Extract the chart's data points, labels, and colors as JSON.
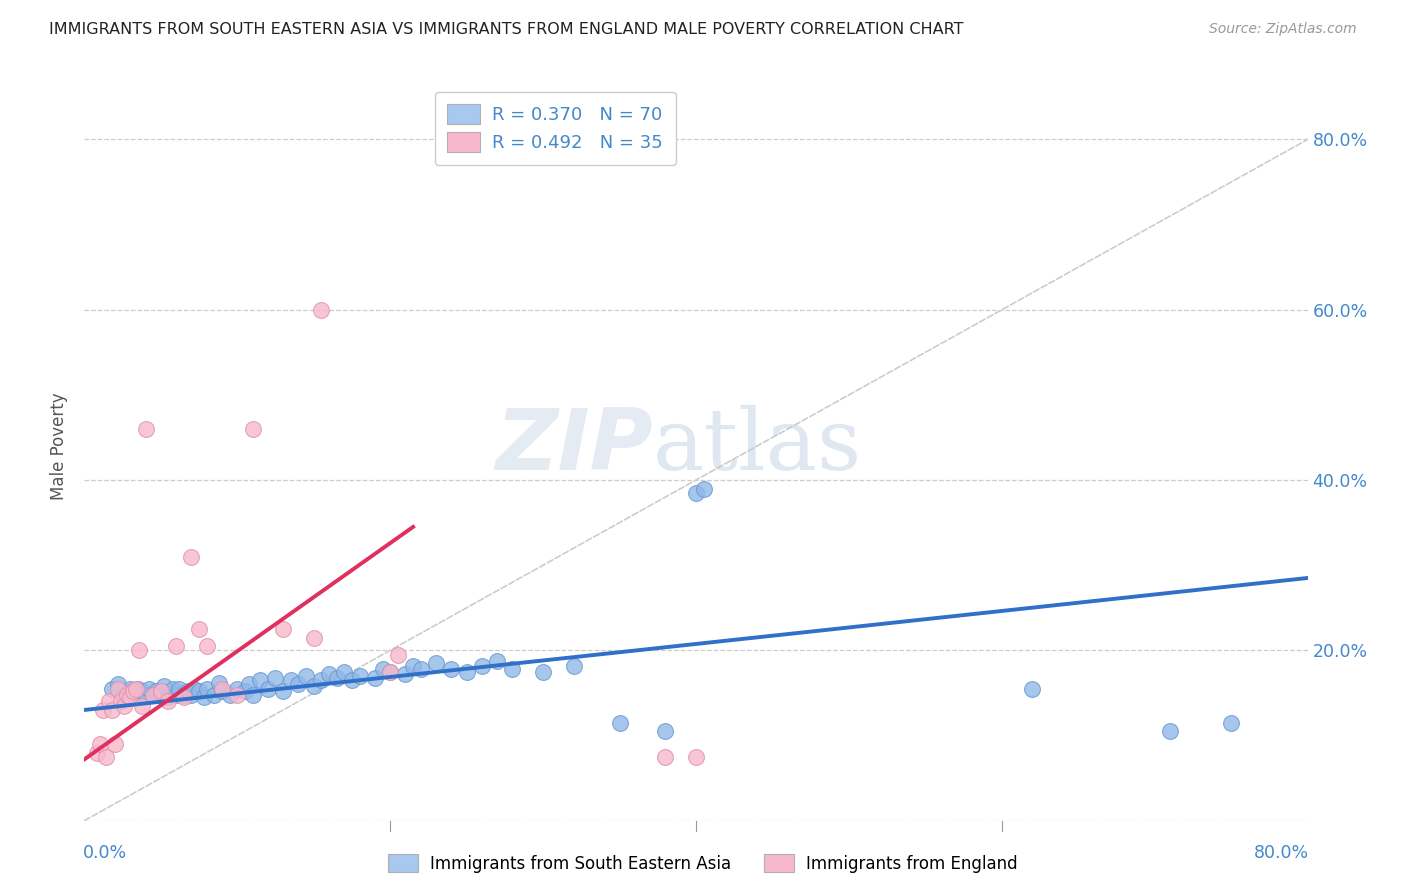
{
  "title": "IMMIGRANTS FROM SOUTH EASTERN ASIA VS IMMIGRANTS FROM ENGLAND MALE POVERTY CORRELATION CHART",
  "source": "Source: ZipAtlas.com",
  "ylabel": "Male Poverty",
  "xlim": [
    0.0,
    0.8
  ],
  "ylim": [
    0.0,
    0.88
  ],
  "ytick_values": [
    0.0,
    0.2,
    0.4,
    0.6,
    0.8
  ],
  "ytick_labels_right": [
    "",
    "20.0%",
    "40.0%",
    "60.0%",
    "80.0%"
  ],
  "xtick_values": [
    0.0,
    0.2,
    0.4,
    0.6,
    0.8
  ],
  "legend1_label": "R = 0.370   N = 70",
  "legend2_label": "R = 0.492   N = 35",
  "legend1_color": "#a8c8f0",
  "legend2_color": "#f8b8cc",
  "line1_color": "#3070c8",
  "line2_color": "#e03060",
  "scatter1_color": "#90b8e8",
  "scatter2_color": "#f8b8cc",
  "watermark_zip": "ZIP",
  "watermark_atlas": "atlas",
  "background_color": "#ffffff",
  "grid_color": "#cccccc",
  "title_color": "#222222",
  "axis_label_color": "#4488cc",
  "diag_line_color": "#cccccc",
  "blue_scatter_x": [
    0.018,
    0.022,
    0.025,
    0.028,
    0.03,
    0.032,
    0.033,
    0.035,
    0.036,
    0.038,
    0.04,
    0.042,
    0.045,
    0.047,
    0.05,
    0.052,
    0.055,
    0.058,
    0.06,
    0.062,
    0.065,
    0.068,
    0.07,
    0.072,
    0.075,
    0.078,
    0.08,
    0.085,
    0.088,
    0.09,
    0.095,
    0.1,
    0.105,
    0.108,
    0.11,
    0.115,
    0.12,
    0.125,
    0.13,
    0.135,
    0.14,
    0.145,
    0.15,
    0.155,
    0.16,
    0.165,
    0.17,
    0.175,
    0.18,
    0.19,
    0.195,
    0.2,
    0.21,
    0.215,
    0.22,
    0.23,
    0.24,
    0.25,
    0.26,
    0.27,
    0.28,
    0.3,
    0.32,
    0.35,
    0.38,
    0.4,
    0.405,
    0.62,
    0.71,
    0.75
  ],
  "blue_scatter_y": [
    0.155,
    0.16,
    0.145,
    0.15,
    0.155,
    0.145,
    0.15,
    0.155,
    0.148,
    0.152,
    0.148,
    0.155,
    0.148,
    0.152,
    0.148,
    0.158,
    0.145,
    0.155,
    0.148,
    0.155,
    0.148,
    0.152,
    0.148,
    0.155,
    0.152,
    0.145,
    0.155,
    0.148,
    0.162,
    0.152,
    0.148,
    0.155,
    0.152,
    0.16,
    0.148,
    0.165,
    0.155,
    0.168,
    0.152,
    0.165,
    0.16,
    0.17,
    0.158,
    0.165,
    0.172,
    0.168,
    0.175,
    0.165,
    0.17,
    0.168,
    0.178,
    0.175,
    0.172,
    0.182,
    0.178,
    0.185,
    0.178,
    0.175,
    0.182,
    0.188,
    0.178,
    0.175,
    0.182,
    0.115,
    0.105,
    0.385,
    0.39,
    0.155,
    0.105,
    0.115
  ],
  "pink_scatter_x": [
    0.008,
    0.01,
    0.012,
    0.014,
    0.016,
    0.018,
    0.02,
    0.022,
    0.024,
    0.026,
    0.028,
    0.03,
    0.032,
    0.034,
    0.036,
    0.038,
    0.04,
    0.045,
    0.05,
    0.055,
    0.06,
    0.065,
    0.07,
    0.075,
    0.08,
    0.09,
    0.1,
    0.11,
    0.13,
    0.15,
    0.155,
    0.2,
    0.205,
    0.38,
    0.4
  ],
  "pink_scatter_y": [
    0.08,
    0.09,
    0.13,
    0.075,
    0.14,
    0.13,
    0.09,
    0.155,
    0.14,
    0.135,
    0.148,
    0.145,
    0.152,
    0.155,
    0.2,
    0.135,
    0.46,
    0.148,
    0.152,
    0.14,
    0.205,
    0.145,
    0.31,
    0.225,
    0.205,
    0.155,
    0.148,
    0.46,
    0.225,
    0.215,
    0.6,
    0.175,
    0.195,
    0.075,
    0.075
  ],
  "line1_x_start": 0.0,
  "line1_x_end": 0.8,
  "line1_y_start": 0.13,
  "line1_y_end": 0.285,
  "line2_x_start": 0.0,
  "line2_x_end": 0.215,
  "line2_y_start": 0.072,
  "line2_y_end": 0.345
}
